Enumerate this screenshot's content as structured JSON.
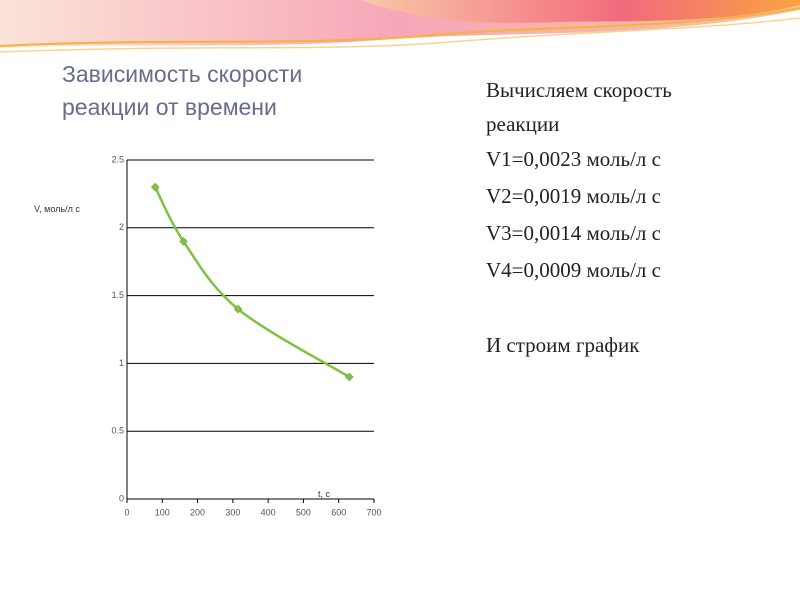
{
  "slide": {
    "title": [
      "Зависимость скорости",
      "реакции от времени"
    ],
    "text": [
      "Вычисляем скорость",
      "реакции",
      "V1=0,0023 моль/л с",
      "V2=0,0019 моль/л с",
      "V3=0,0014 моль/л с",
      "V4=0,0009 моль/л с",
      "И строим график"
    ]
  },
  "chart_data": {
    "type": "line",
    "xlabel": "t, с",
    "ylabel": "V, моль/л с",
    "x": [
      80,
      160,
      315,
      630
    ],
    "values": [
      2.3,
      1.9,
      1.4,
      0.9
    ],
    "color": "#7dc242",
    "xlim": [
      0,
      700
    ],
    "xticks": [
      0,
      100,
      200,
      300,
      400,
      500,
      600,
      700
    ],
    "ylim": [
      0,
      2.5
    ],
    "yticks": [
      0,
      0.5,
      1,
      1.5,
      2,
      2.5
    ],
    "grid": true
  }
}
